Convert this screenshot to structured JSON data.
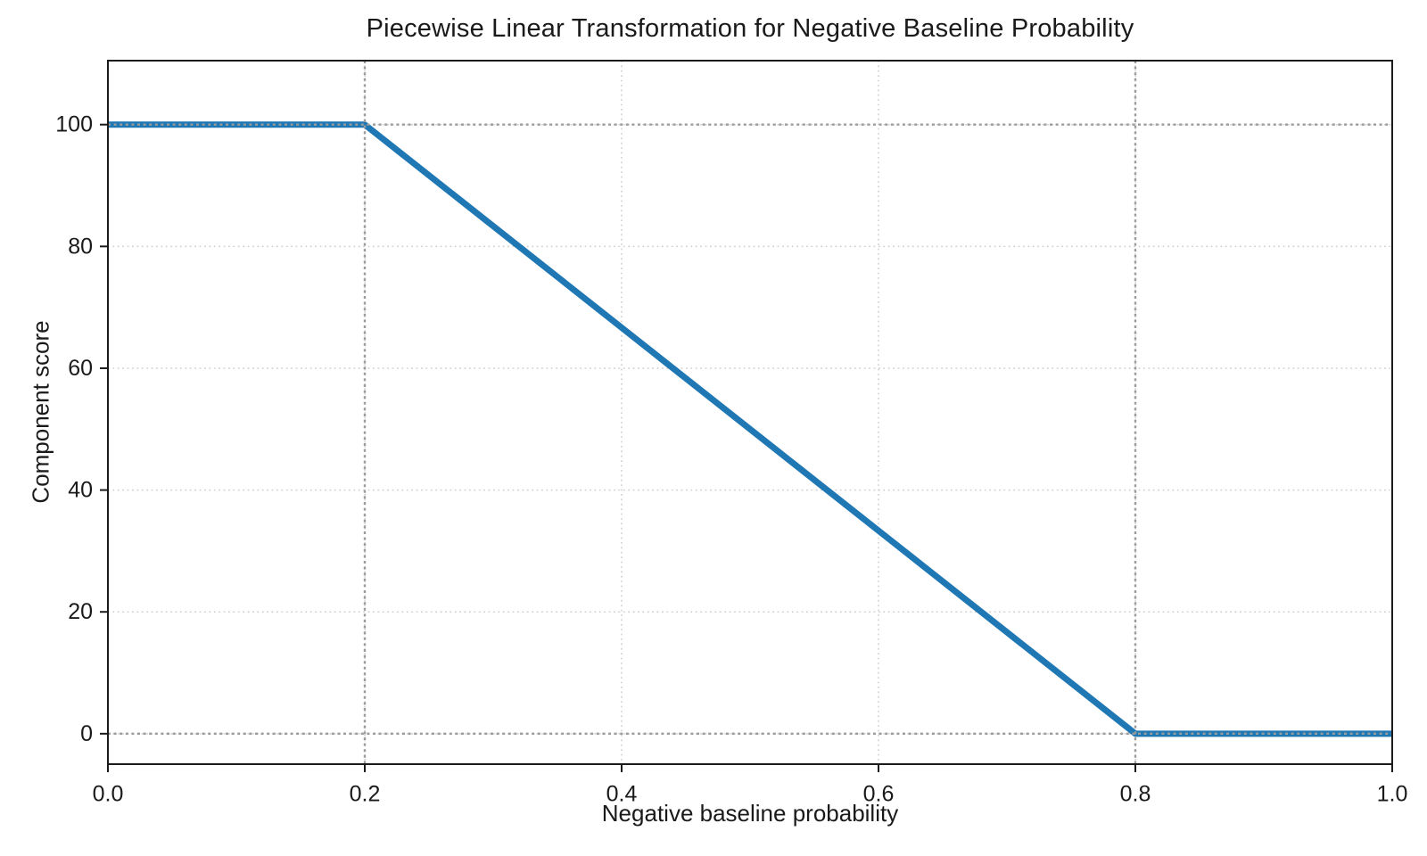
{
  "chart_data": {
    "type": "line",
    "title": "Piecewise Linear Transformation for Negative Baseline Probability",
    "xlabel": "Negative baseline probability",
    "ylabel": "Component score",
    "series": [
      {
        "name": "component-score-curve",
        "x": [
          0.0,
          0.2,
          0.8,
          1.0
        ],
        "y": [
          100,
          100,
          0,
          0
        ],
        "color": "#1f77b4",
        "line_width": 7
      }
    ],
    "xlim": [
      0.0,
      1.0
    ],
    "ylim": [
      -5.0,
      110.5
    ],
    "xticks": {
      "values": [
        0.0,
        0.2,
        0.4,
        0.6,
        0.8,
        1.0
      ],
      "labels": [
        "0.0",
        "0.2",
        "0.4",
        "0.6",
        "0.8",
        "1.0"
      ]
    },
    "yticks": {
      "values": [
        0,
        20,
        40,
        60,
        80,
        100
      ],
      "labels": [
        "0",
        "20",
        "40",
        "60",
        "80",
        "100"
      ]
    },
    "grid": {
      "on": true,
      "style": "dotted",
      "color": "#cfcfcf"
    },
    "reference_lines": {
      "x": [
        0.2,
        0.8
      ],
      "y": [
        0,
        100
      ],
      "style": "dotted",
      "color": "#9b9b9b"
    },
    "legend": {
      "visible": false
    }
  },
  "colors": {
    "line": "#1f77b4",
    "grid_light": "#cfcfcf",
    "grid_dark": "#9b9b9b",
    "spine": "#1a1a1a",
    "text": "#1a1a1a",
    "background": "#ffffff"
  }
}
